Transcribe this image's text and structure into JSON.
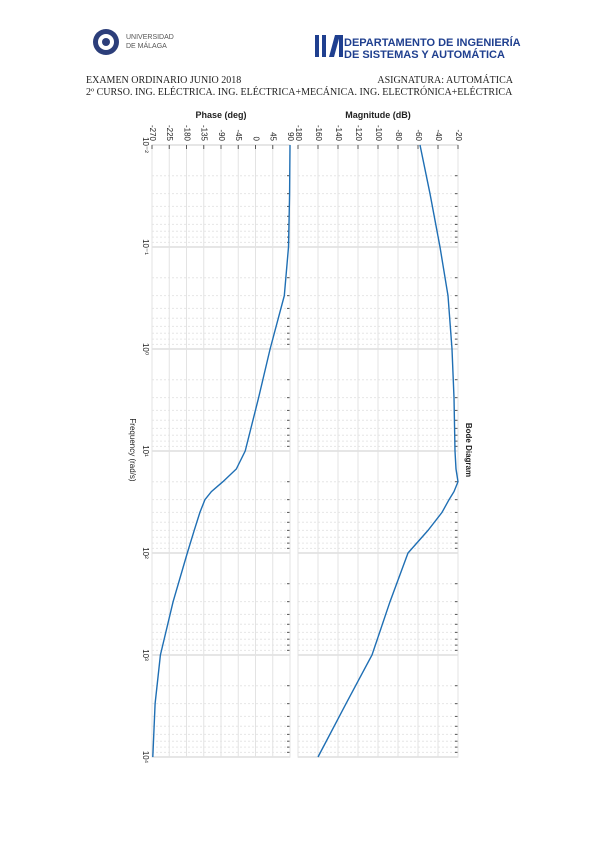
{
  "header": {
    "university": "UNIVERSIDAD DE MÁLAGA",
    "department_line1": "DEPARTAMENTO DE INGENIERÍA",
    "department_line2": "DE SISTEMAS Y AUTOMÁTICA",
    "exam": "EXAMEN ORDINARIO JUNIO 2018",
    "subject": "ASIGNATURA: AUTOMÁTICA",
    "course": "2º CURSO. ING. ELÉCTRICA. ING. ELÉCTRICA+MECÁNICA. ING. ELECTRÓNICA+ELÉCTRICA"
  },
  "chart_data": {
    "type": "bode",
    "title": "Bode Diagram",
    "xlabel": "Frequency (rad/s)",
    "log_x": true,
    "grid": true,
    "color": "#1f6fb4",
    "x": [
      0.01,
      0.03,
      0.1,
      0.3,
      1,
      3,
      10,
      15,
      20,
      25,
      30,
      40,
      60,
      100,
      300,
      1000,
      3000,
      10000
    ],
    "xlim": [
      0.01,
      10000
    ],
    "xticks": [
      {
        "value": 0.01,
        "label": "10⁻²"
      },
      {
        "value": 0.1,
        "label": "10⁻¹"
      },
      {
        "value": 1,
        "label": "10⁰"
      },
      {
        "value": 10,
        "label": "10¹"
      },
      {
        "value": 100,
        "label": "10²"
      },
      {
        "value": 1000,
        "label": "10³"
      },
      {
        "value": 10000,
        "label": "10⁴"
      }
    ],
    "magnitude": {
      "ylabel": "Magnitude (dB)",
      "ylim": [
        -180,
        -20
      ],
      "yticks": [
        -180,
        -160,
        -140,
        -120,
        -100,
        -80,
        -60,
        -40,
        -20
      ],
      "values": [
        -58,
        -48,
        -38,
        -30,
        -26,
        -24,
        -23,
        -22,
        -20,
        -24,
        -29,
        -36,
        -50,
        -70,
        -88,
        -106,
        -132,
        -160
      ]
    },
    "phase": {
      "ylabel": "Phase (deg)",
      "ylim": [
        -270,
        90
      ],
      "yticks": [
        -270,
        -225,
        -180,
        -135,
        -90,
        -45,
        0,
        45,
        90
      ],
      "values": [
        90,
        89,
        86,
        75,
        38,
        8,
        -27,
        -50,
        -85,
        -115,
        -132,
        -145,
        -160,
        -178,
        -215,
        -248,
        -262,
        -268
      ]
    }
  }
}
